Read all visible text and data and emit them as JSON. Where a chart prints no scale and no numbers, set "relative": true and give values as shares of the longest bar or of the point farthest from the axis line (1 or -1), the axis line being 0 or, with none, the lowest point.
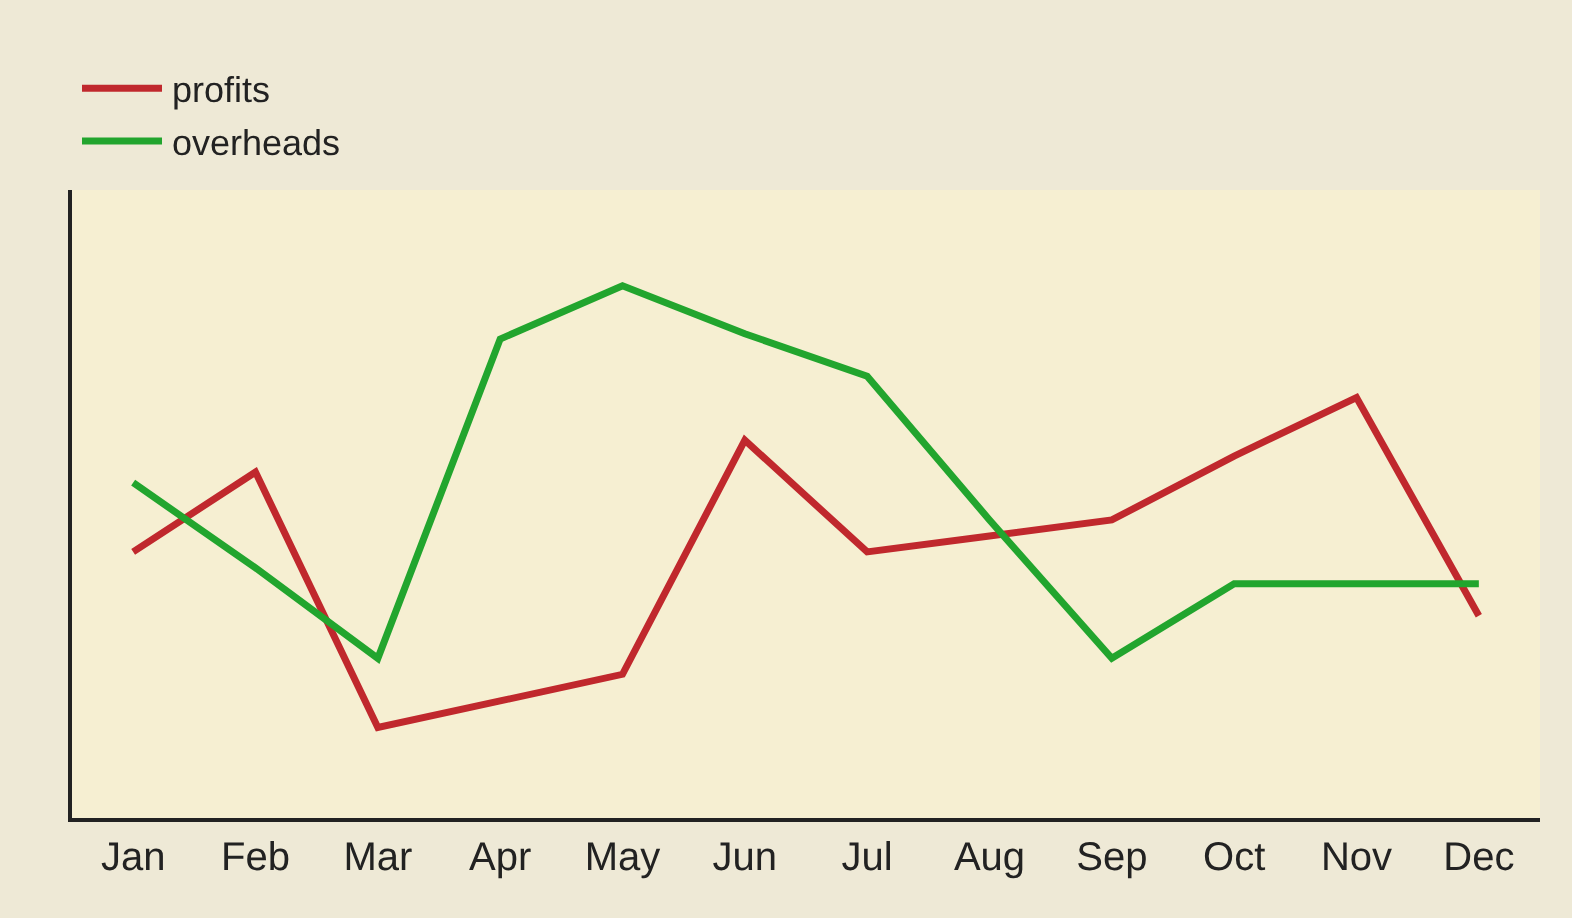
{
  "chart_data": {
    "type": "line",
    "relative": true,
    "categories": [
      "Jan",
      "Feb",
      "Mar",
      "Apr",
      "May",
      "Jun",
      "Jul",
      "Aug",
      "Sep",
      "Oct",
      "Nov",
      "Dec"
    ],
    "series": [
      {
        "name": "profits",
        "color": "#c0282d",
        "values": [
          0.5,
          0.65,
          0.17,
          0.22,
          0.27,
          0.71,
          0.5,
          0.53,
          0.56,
          0.68,
          0.79,
          0.38
        ]
      },
      {
        "name": "overheads",
        "color": "#22a52e",
        "values": [
          0.63,
          0.47,
          0.3,
          0.9,
          1.0,
          0.91,
          0.83,
          0.56,
          0.3,
          0.44,
          0.44,
          0.44
        ]
      }
    ],
    "legend": "top left",
    "grid": false,
    "marker": "none",
    "line_style": "solid"
  }
}
